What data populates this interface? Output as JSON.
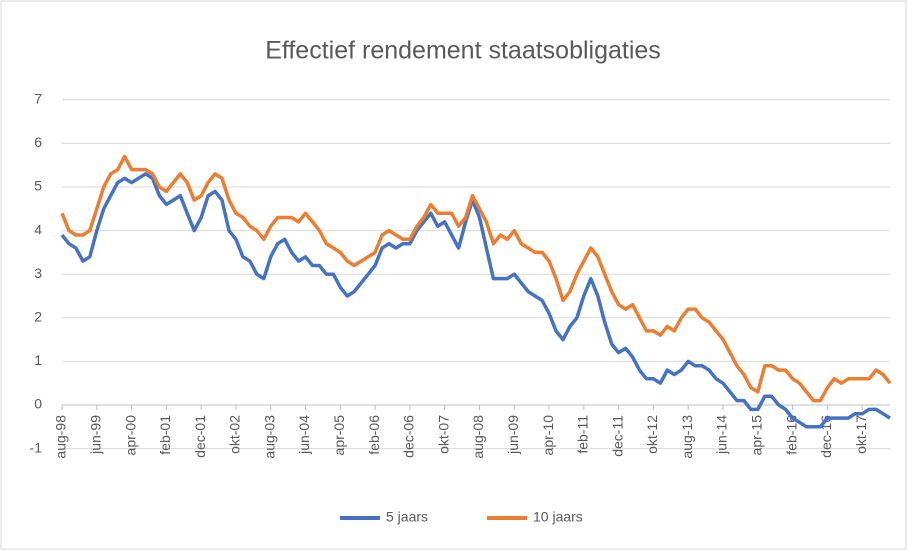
{
  "chart_data": {
    "type": "line",
    "title": "Effectief rendement staatsobligaties",
    "categories": [
      "aug-98",
      null,
      null,
      null,
      null,
      "jun-99",
      null,
      null,
      null,
      null,
      "apr-00",
      null,
      null,
      null,
      null,
      "feb-01",
      null,
      null,
      null,
      null,
      "dec-01",
      null,
      null,
      null,
      null,
      "okt-02",
      null,
      null,
      null,
      null,
      "aug-03",
      null,
      null,
      null,
      null,
      "jun-04",
      null,
      null,
      null,
      null,
      "apr-05",
      null,
      null,
      null,
      null,
      "feb-06",
      null,
      null,
      null,
      null,
      "dec-06",
      null,
      null,
      null,
      null,
      "okt-07",
      null,
      null,
      null,
      null,
      "aug-08",
      null,
      null,
      null,
      null,
      "jun-09",
      null,
      null,
      null,
      null,
      "apr-10",
      null,
      null,
      null,
      null,
      "feb-11",
      null,
      null,
      null,
      null,
      "dec-11",
      null,
      null,
      null,
      null,
      "okt-12",
      null,
      null,
      null,
      null,
      "aug-13",
      null,
      null,
      null,
      null,
      "jun-14",
      null,
      null,
      null,
      null,
      "apr-15",
      null,
      null,
      null,
      null,
      "feb-16",
      null,
      null,
      null,
      null,
      "dec-16",
      null,
      null,
      null,
      null,
      "okt-17",
      null,
      null,
      null,
      null
    ],
    "series": [
      {
        "name": "5 jaars",
        "color": "#4472c4",
        "values": [
          3.9,
          3.7,
          3.6,
          3.3,
          3.4,
          4.0,
          4.5,
          4.8,
          5.1,
          5.2,
          5.1,
          5.2,
          5.3,
          5.2,
          4.8,
          4.6,
          4.7,
          4.8,
          4.4,
          4.0,
          4.3,
          4.8,
          4.9,
          4.7,
          4.0,
          3.8,
          3.4,
          3.3,
          3.0,
          2.9,
          3.4,
          3.7,
          3.8,
          3.5,
          3.3,
          3.4,
          3.2,
          3.2,
          3.0,
          3.0,
          2.7,
          2.5,
          2.6,
          2.8,
          3.0,
          3.2,
          3.6,
          3.7,
          3.6,
          3.7,
          3.7,
          4.0,
          4.2,
          4.4,
          4.1,
          4.2,
          3.9,
          3.6,
          4.2,
          4.7,
          4.3,
          3.6,
          2.9,
          2.9,
          2.9,
          3.0,
          2.8,
          2.6,
          2.5,
          2.4,
          2.1,
          1.7,
          1.5,
          1.8,
          2.0,
          2.5,
          2.9,
          2.5,
          1.9,
          1.4,
          1.2,
          1.3,
          1.1,
          0.8,
          0.6,
          0.6,
          0.5,
          0.8,
          0.7,
          0.8,
          1.0,
          0.9,
          0.9,
          0.8,
          0.6,
          0.5,
          0.3,
          0.1,
          0.1,
          -0.1,
          -0.1,
          0.2,
          0.2,
          0.0,
          -0.1,
          -0.3,
          -0.4,
          -0.5,
          -0.5,
          -0.5,
          -0.3,
          -0.3,
          -0.3,
          -0.3,
          -0.2,
          -0.2,
          -0.1,
          -0.1,
          -0.2,
          -0.3
        ]
      },
      {
        "name": "10 jaars",
        "color": "#ed7d31",
        "values": [
          4.4,
          4.0,
          3.9,
          3.9,
          4.0,
          4.5,
          5.0,
          5.3,
          5.4,
          5.7,
          5.4,
          5.4,
          5.4,
          5.3,
          5.0,
          4.9,
          5.1,
          5.3,
          5.1,
          4.7,
          4.8,
          5.1,
          5.3,
          5.2,
          4.7,
          4.4,
          4.3,
          4.1,
          4.0,
          3.8,
          4.1,
          4.3,
          4.3,
          4.3,
          4.2,
          4.4,
          4.2,
          4.0,
          3.7,
          3.6,
          3.5,
          3.3,
          3.2,
          3.3,
          3.4,
          3.5,
          3.9,
          4.0,
          3.9,
          3.8,
          3.8,
          4.1,
          4.3,
          4.6,
          4.4,
          4.4,
          4.4,
          4.1,
          4.3,
          4.8,
          4.5,
          4.2,
          3.7,
          3.9,
          3.8,
          4.0,
          3.7,
          3.6,
          3.5,
          3.5,
          3.3,
          2.9,
          2.4,
          2.6,
          3.0,
          3.3,
          3.6,
          3.4,
          3.0,
          2.6,
          2.3,
          2.2,
          2.3,
          2.0,
          1.7,
          1.7,
          1.6,
          1.8,
          1.7,
          2.0,
          2.2,
          2.2,
          2.0,
          1.9,
          1.7,
          1.5,
          1.2,
          0.9,
          0.7,
          0.4,
          0.3,
          0.9,
          0.9,
          0.8,
          0.8,
          0.6,
          0.5,
          0.3,
          0.1,
          0.1,
          0.4,
          0.6,
          0.5,
          0.6,
          0.6,
          0.6,
          0.6,
          0.8,
          0.7,
          0.5
        ]
      }
    ],
    "ylim": [
      -1,
      7
    ],
    "yticks": [
      -1,
      0,
      1,
      2,
      3,
      4,
      5,
      6,
      7
    ],
    "grid": true,
    "legend": "bottom"
  }
}
